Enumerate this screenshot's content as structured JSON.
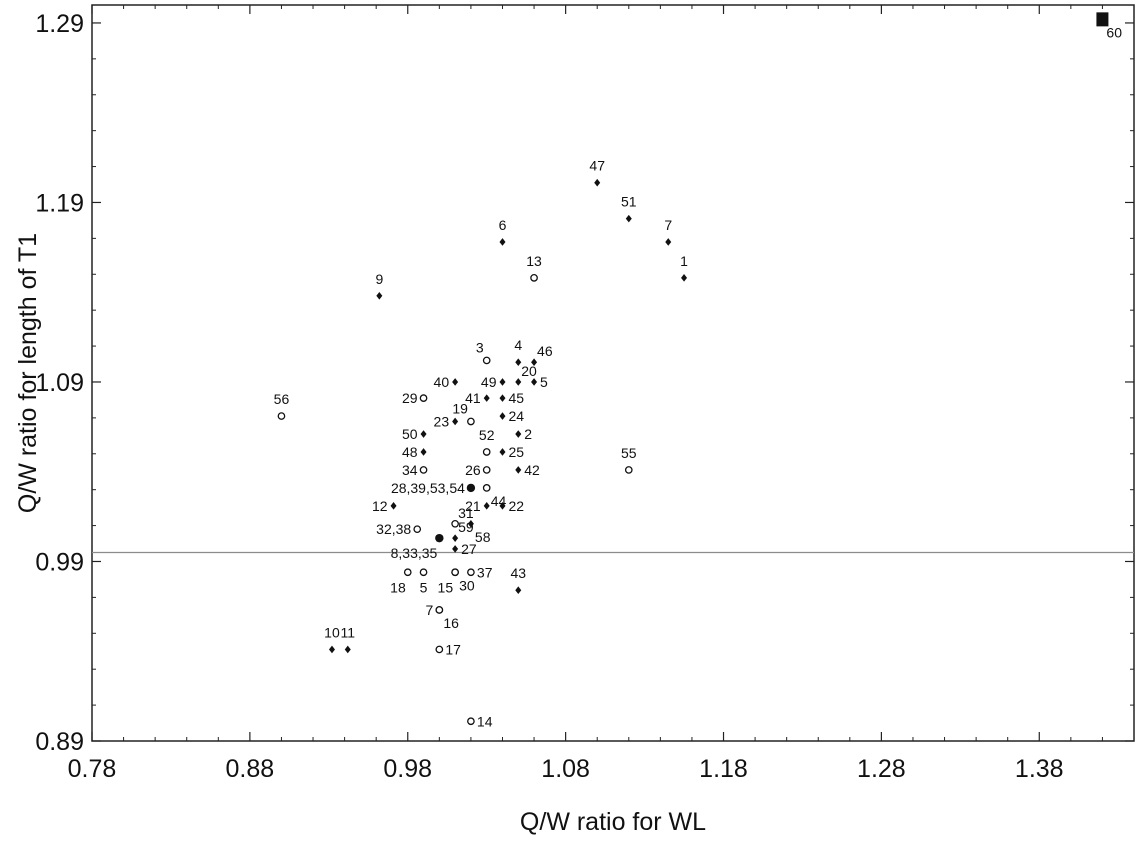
{
  "chart_data": {
    "type": "scatter",
    "title": "",
    "xlabel": "Q/W ratio for WL",
    "ylabel": "Q/W ratio for length of T1",
    "xlim": [
      0.78,
      1.44
    ],
    "ylim": [
      0.89,
      1.3
    ],
    "xticks": [
      "0.78",
      "0.88",
      "0.98",
      "1.08",
      "1.18",
      "1.28",
      "1.38"
    ],
    "yticks": [
      "0.89",
      "0.99",
      "1.09",
      "1.19",
      "1.29"
    ],
    "reference_line_y": 0.995,
    "grid": false,
    "legend": "none",
    "marker_styles": [
      "filled diamond",
      "open circle",
      "filled circle",
      "filled square"
    ],
    "points": [
      {
        "label": "1",
        "x": 1.155,
        "y": 1.148,
        "marker": "diamond",
        "label_pos": "above"
      },
      {
        "label": "2",
        "x": 1.05,
        "y": 1.061,
        "marker": "diamond",
        "label_pos": "right"
      },
      {
        "label": "3",
        "x": 1.03,
        "y": 1.102,
        "marker": "circle",
        "label_pos": "above-left"
      },
      {
        "label": "4",
        "x": 1.05,
        "y": 1.101,
        "marker": "diamond",
        "label_pos": "above"
      },
      {
        "label": "5",
        "x": 1.06,
        "y": 1.09,
        "marker": "diamond",
        "label_pos": "right"
      },
      {
        "label": "5",
        "x": 0.99,
        "y": 0.984,
        "marker": "circle",
        "label_pos": "below"
      },
      {
        "label": "6",
        "x": 1.04,
        "y": 1.168,
        "marker": "diamond",
        "label_pos": "above"
      },
      {
        "label": "7",
        "x": 1.145,
        "y": 1.168,
        "marker": "diamond",
        "label_pos": "above"
      },
      {
        "label": "7",
        "x": 1.0,
        "y": 0.963,
        "marker": "circle",
        "label_pos": "left"
      },
      {
        "label": "9",
        "x": 0.962,
        "y": 1.138,
        "marker": "diamond",
        "label_pos": "above"
      },
      {
        "label": "10",
        "x": 0.932,
        "y": 0.941,
        "marker": "diamond",
        "label_pos": "above"
      },
      {
        "label": "11",
        "x": 0.942,
        "y": 0.941,
        "marker": "diamond",
        "label_pos": "above"
      },
      {
        "label": "12",
        "x": 0.971,
        "y": 1.021,
        "marker": "diamond",
        "label_pos": "left"
      },
      {
        "label": "13",
        "x": 1.06,
        "y": 1.148,
        "marker": "circle",
        "label_pos": "above"
      },
      {
        "label": "14",
        "x": 1.02,
        "y": 0.901,
        "marker": "circle",
        "label_pos": "right"
      },
      {
        "label": "15",
        "x": 1.01,
        "y": 0.984,
        "marker": "circle",
        "label_pos": "below-left"
      },
      {
        "label": "16",
        "x": 1.0,
        "y": 0.963,
        "marker": "circle",
        "label_pos": "below-right"
      },
      {
        "label": "17",
        "x": 1.0,
        "y": 0.941,
        "marker": "circle",
        "label_pos": "right"
      },
      {
        "label": "18",
        "x": 0.98,
        "y": 0.984,
        "marker": "circle",
        "label_pos": "below-left"
      },
      {
        "label": "19",
        "x": 1.02,
        "y": 1.068,
        "marker": "circle",
        "label_pos": "above-left"
      },
      {
        "label": "20",
        "x": 1.05,
        "y": 1.09,
        "marker": "diamond",
        "label_pos": "above-right"
      },
      {
        "label": "21",
        "x": 1.03,
        "y": 1.021,
        "marker": "diamond",
        "label_pos": "left"
      },
      {
        "label": "22",
        "x": 1.04,
        "y": 1.021,
        "marker": "diamond",
        "label_pos": "right"
      },
      {
        "label": "23",
        "x": 1.01,
        "y": 1.068,
        "marker": "diamond",
        "label_pos": "left"
      },
      {
        "label": "24",
        "x": 1.04,
        "y": 1.071,
        "marker": "diamond",
        "label_pos": "right"
      },
      {
        "label": "25",
        "x": 1.04,
        "y": 1.051,
        "marker": "diamond",
        "label_pos": "right"
      },
      {
        "label": "26",
        "x": 1.03,
        "y": 1.041,
        "marker": "circle",
        "label_pos": "left"
      },
      {
        "label": "27",
        "x": 1.01,
        "y": 0.997,
        "marker": "diamond",
        "label_pos": "right"
      },
      {
        "label": "28,39,53,54",
        "x": 1.02,
        "y": 1.031,
        "marker": "dot",
        "label_pos": "left"
      },
      {
        "label": "29",
        "x": 0.99,
        "y": 1.081,
        "marker": "circle",
        "label_pos": "left"
      },
      {
        "label": "30",
        "x": 1.01,
        "y": 0.984,
        "marker": "circle",
        "label_pos": "below-right"
      },
      {
        "label": "31",
        "x": 1.01,
        "y": 1.011,
        "marker": "circle",
        "label_pos": "above-right"
      },
      {
        "label": "32,38",
        "x": 0.986,
        "y": 1.008,
        "marker": "circle",
        "label_pos": "left"
      },
      {
        "label": "8,33,35",
        "x": 1.0,
        "y": 1.003,
        "marker": "dot",
        "label_pos": "below-left"
      },
      {
        "label": "34",
        "x": 0.99,
        "y": 1.041,
        "marker": "circle",
        "label_pos": "left"
      },
      {
        "label": "37",
        "x": 1.02,
        "y": 0.984,
        "marker": "circle",
        "label_pos": "right"
      },
      {
        "label": "40",
        "x": 1.01,
        "y": 1.09,
        "marker": "diamond",
        "label_pos": "left"
      },
      {
        "label": "41",
        "x": 1.03,
        "y": 1.081,
        "marker": "diamond",
        "label_pos": "left"
      },
      {
        "label": "42",
        "x": 1.05,
        "y": 1.041,
        "marker": "diamond",
        "label_pos": "right"
      },
      {
        "label": "43",
        "x": 1.05,
        "y": 0.974,
        "marker": "diamond",
        "label_pos": "above"
      },
      {
        "label": "44",
        "x": 1.03,
        "y": 1.031,
        "marker": "circle",
        "label_pos": "below-right"
      },
      {
        "label": "45",
        "x": 1.04,
        "y": 1.081,
        "marker": "diamond",
        "label_pos": "right"
      },
      {
        "label": "46",
        "x": 1.06,
        "y": 1.101,
        "marker": "diamond",
        "label_pos": "above-right"
      },
      {
        "label": "47",
        "x": 1.1,
        "y": 1.201,
        "marker": "diamond",
        "label_pos": "above"
      },
      {
        "label": "48",
        "x": 0.99,
        "y": 1.051,
        "marker": "diamond",
        "label_pos": "left"
      },
      {
        "label": "49",
        "x": 1.04,
        "y": 1.09,
        "marker": "diamond",
        "label_pos": "left"
      },
      {
        "label": "50",
        "x": 0.99,
        "y": 1.061,
        "marker": "diamond",
        "label_pos": "left"
      },
      {
        "label": "51",
        "x": 1.12,
        "y": 1.181,
        "marker": "diamond",
        "label_pos": "above"
      },
      {
        "label": "52",
        "x": 1.03,
        "y": 1.051,
        "marker": "circle",
        "label_pos": "above"
      },
      {
        "label": "55",
        "x": 1.12,
        "y": 1.041,
        "marker": "circle",
        "label_pos": "above"
      },
      {
        "label": "56",
        "x": 0.9,
        "y": 1.071,
        "marker": "circle",
        "label_pos": "above"
      },
      {
        "label": "58",
        "x": 1.02,
        "y": 1.011,
        "marker": "diamond",
        "label_pos": "below-right"
      },
      {
        "label": "59",
        "x": 1.01,
        "y": 1.003,
        "marker": "diamond",
        "label_pos": "above-right"
      },
      {
        "label": "60",
        "x": 1.42,
        "y": 1.292,
        "marker": "square",
        "label_pos": "below-right"
      }
    ]
  }
}
